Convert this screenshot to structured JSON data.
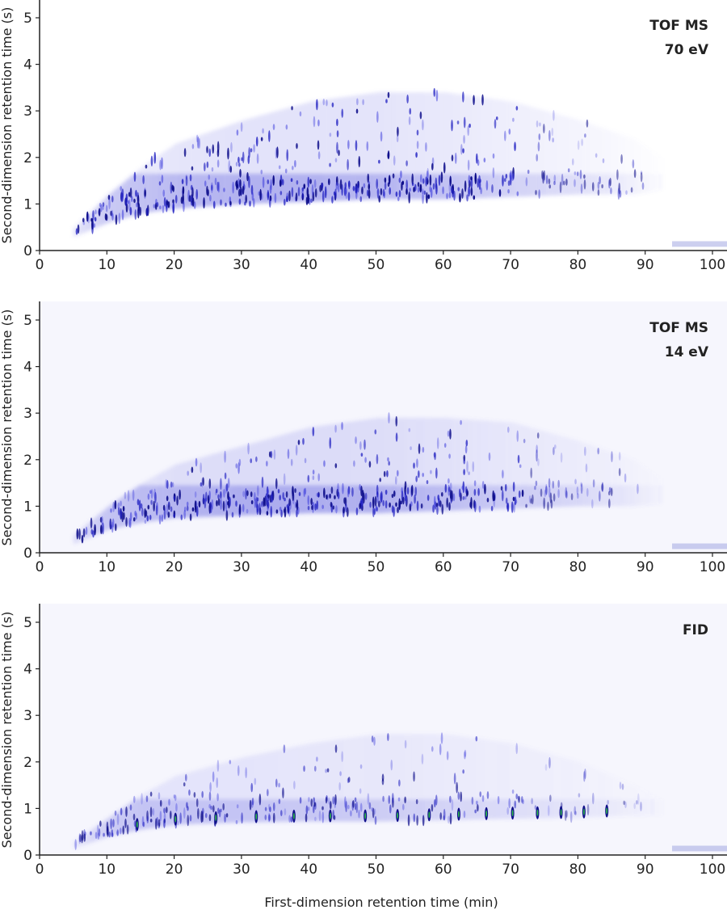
{
  "chart_data": {
    "type": "heatmap",
    "xlabel": "First-dimension retention time (min)",
    "ylabel": "Second-dimension retention time (s)",
    "xlim": [
      0,
      103
    ],
    "ylim": [
      0,
      5.4
    ],
    "xticks": [
      0,
      10,
      20,
      30,
      40,
      50,
      60,
      70,
      80,
      90,
      100
    ],
    "yticks": [
      0,
      1,
      2,
      3,
      4,
      5
    ],
    "colormap": [
      "#ffffff",
      "#c8c8f4",
      "#5a5ae6",
      "#1a1ab4",
      "#0a0a70"
    ],
    "panels": [
      {
        "title_lines": [
          "TOF MS",
          "70 eV"
        ],
        "background": "#ffffff",
        "envelope": [
          {
            "x": 5,
            "ymin": 0.3,
            "ymax": 0.5,
            "density": 0.3
          },
          {
            "x": 10,
            "ymin": 0.6,
            "ymax": 1.2,
            "density": 0.6
          },
          {
            "x": 15,
            "ymin": 0.8,
            "ymax": 1.8,
            "density": 0.7
          },
          {
            "x": 20,
            "ymin": 0.9,
            "ymax": 2.3,
            "density": 0.8
          },
          {
            "x": 30,
            "ymin": 1.0,
            "ymax": 2.8,
            "density": 0.9
          },
          {
            "x": 40,
            "ymin": 1.05,
            "ymax": 3.2,
            "density": 0.9
          },
          {
            "x": 50,
            "ymin": 1.1,
            "ymax": 3.4,
            "density": 0.85
          },
          {
            "x": 60,
            "ymin": 1.1,
            "ymax": 3.4,
            "density": 0.7
          },
          {
            "x": 70,
            "ymin": 1.15,
            "ymax": 3.2,
            "density": 0.5
          },
          {
            "x": 80,
            "ymin": 1.2,
            "ymax": 2.8,
            "density": 0.35
          },
          {
            "x": 88,
            "ymin": 1.2,
            "ymax": 2.4,
            "density": 0.15
          },
          {
            "x": 92,
            "ymin": 1.3,
            "ymax": 2.0,
            "density": 0.05
          }
        ],
        "main_band": 1.3,
        "intensity": 1.0
      },
      {
        "title_lines": [
          "TOF MS",
          "14 eV"
        ],
        "background": "#f6f6fd",
        "envelope": [
          {
            "x": 5,
            "ymin": 0.2,
            "ymax": 0.4,
            "density": 0.3
          },
          {
            "x": 10,
            "ymin": 0.5,
            "ymax": 1.0,
            "density": 0.6
          },
          {
            "x": 15,
            "ymin": 0.65,
            "ymax": 1.5,
            "density": 0.7
          },
          {
            "x": 20,
            "ymin": 0.75,
            "ymax": 1.9,
            "density": 0.8
          },
          {
            "x": 30,
            "ymin": 0.8,
            "ymax": 2.3,
            "density": 0.9
          },
          {
            "x": 40,
            "ymin": 0.85,
            "ymax": 2.7,
            "density": 0.9
          },
          {
            "x": 50,
            "ymin": 0.85,
            "ymax": 2.9,
            "density": 0.85
          },
          {
            "x": 60,
            "ymin": 0.9,
            "ymax": 2.9,
            "density": 0.7
          },
          {
            "x": 70,
            "ymin": 0.95,
            "ymax": 2.8,
            "density": 0.5
          },
          {
            "x": 80,
            "ymin": 1.0,
            "ymax": 2.4,
            "density": 0.35
          },
          {
            "x": 88,
            "ymin": 1.0,
            "ymax": 2.0,
            "density": 0.15
          },
          {
            "x": 92,
            "ymin": 1.05,
            "ymax": 1.6,
            "density": 0.05
          }
        ],
        "main_band": 1.1,
        "intensity": 0.95
      },
      {
        "title_lines": [
          "FID"
        ],
        "background": "#f6f6fd",
        "envelope": [
          {
            "x": 5,
            "ymin": 0.15,
            "ymax": 0.3,
            "density": 0.2
          },
          {
            "x": 10,
            "ymin": 0.4,
            "ymax": 0.8,
            "density": 0.5
          },
          {
            "x": 15,
            "ymin": 0.55,
            "ymax": 1.3,
            "density": 0.6
          },
          {
            "x": 20,
            "ymin": 0.65,
            "ymax": 1.7,
            "density": 0.6
          },
          {
            "x": 30,
            "ymin": 0.7,
            "ymax": 2.1,
            "density": 0.6
          },
          {
            "x": 40,
            "ymin": 0.72,
            "ymax": 2.4,
            "density": 0.55
          },
          {
            "x": 50,
            "ymin": 0.72,
            "ymax": 2.6,
            "density": 0.5
          },
          {
            "x": 60,
            "ymin": 0.75,
            "ymax": 2.6,
            "density": 0.4
          },
          {
            "x": 70,
            "ymin": 0.78,
            "ymax": 2.4,
            "density": 0.3
          },
          {
            "x": 80,
            "ymin": 0.8,
            "ymax": 2.0,
            "density": 0.2
          },
          {
            "x": 88,
            "ymin": 0.85,
            "ymax": 1.5,
            "density": 0.1
          },
          {
            "x": 92,
            "ymin": 0.85,
            "ymax": 1.2,
            "density": 0.04
          }
        ],
        "main_band": 0.85,
        "intensity": 0.75,
        "alkane_peaks_x": [
          14.5,
          20.2,
          26.2,
          32.2,
          37.8,
          43.2,
          48.4,
          53.2,
          57.9,
          62.3,
          66.4,
          70.3,
          74.0,
          77.5,
          80.9,
          84.3
        ]
      }
    ]
  }
}
